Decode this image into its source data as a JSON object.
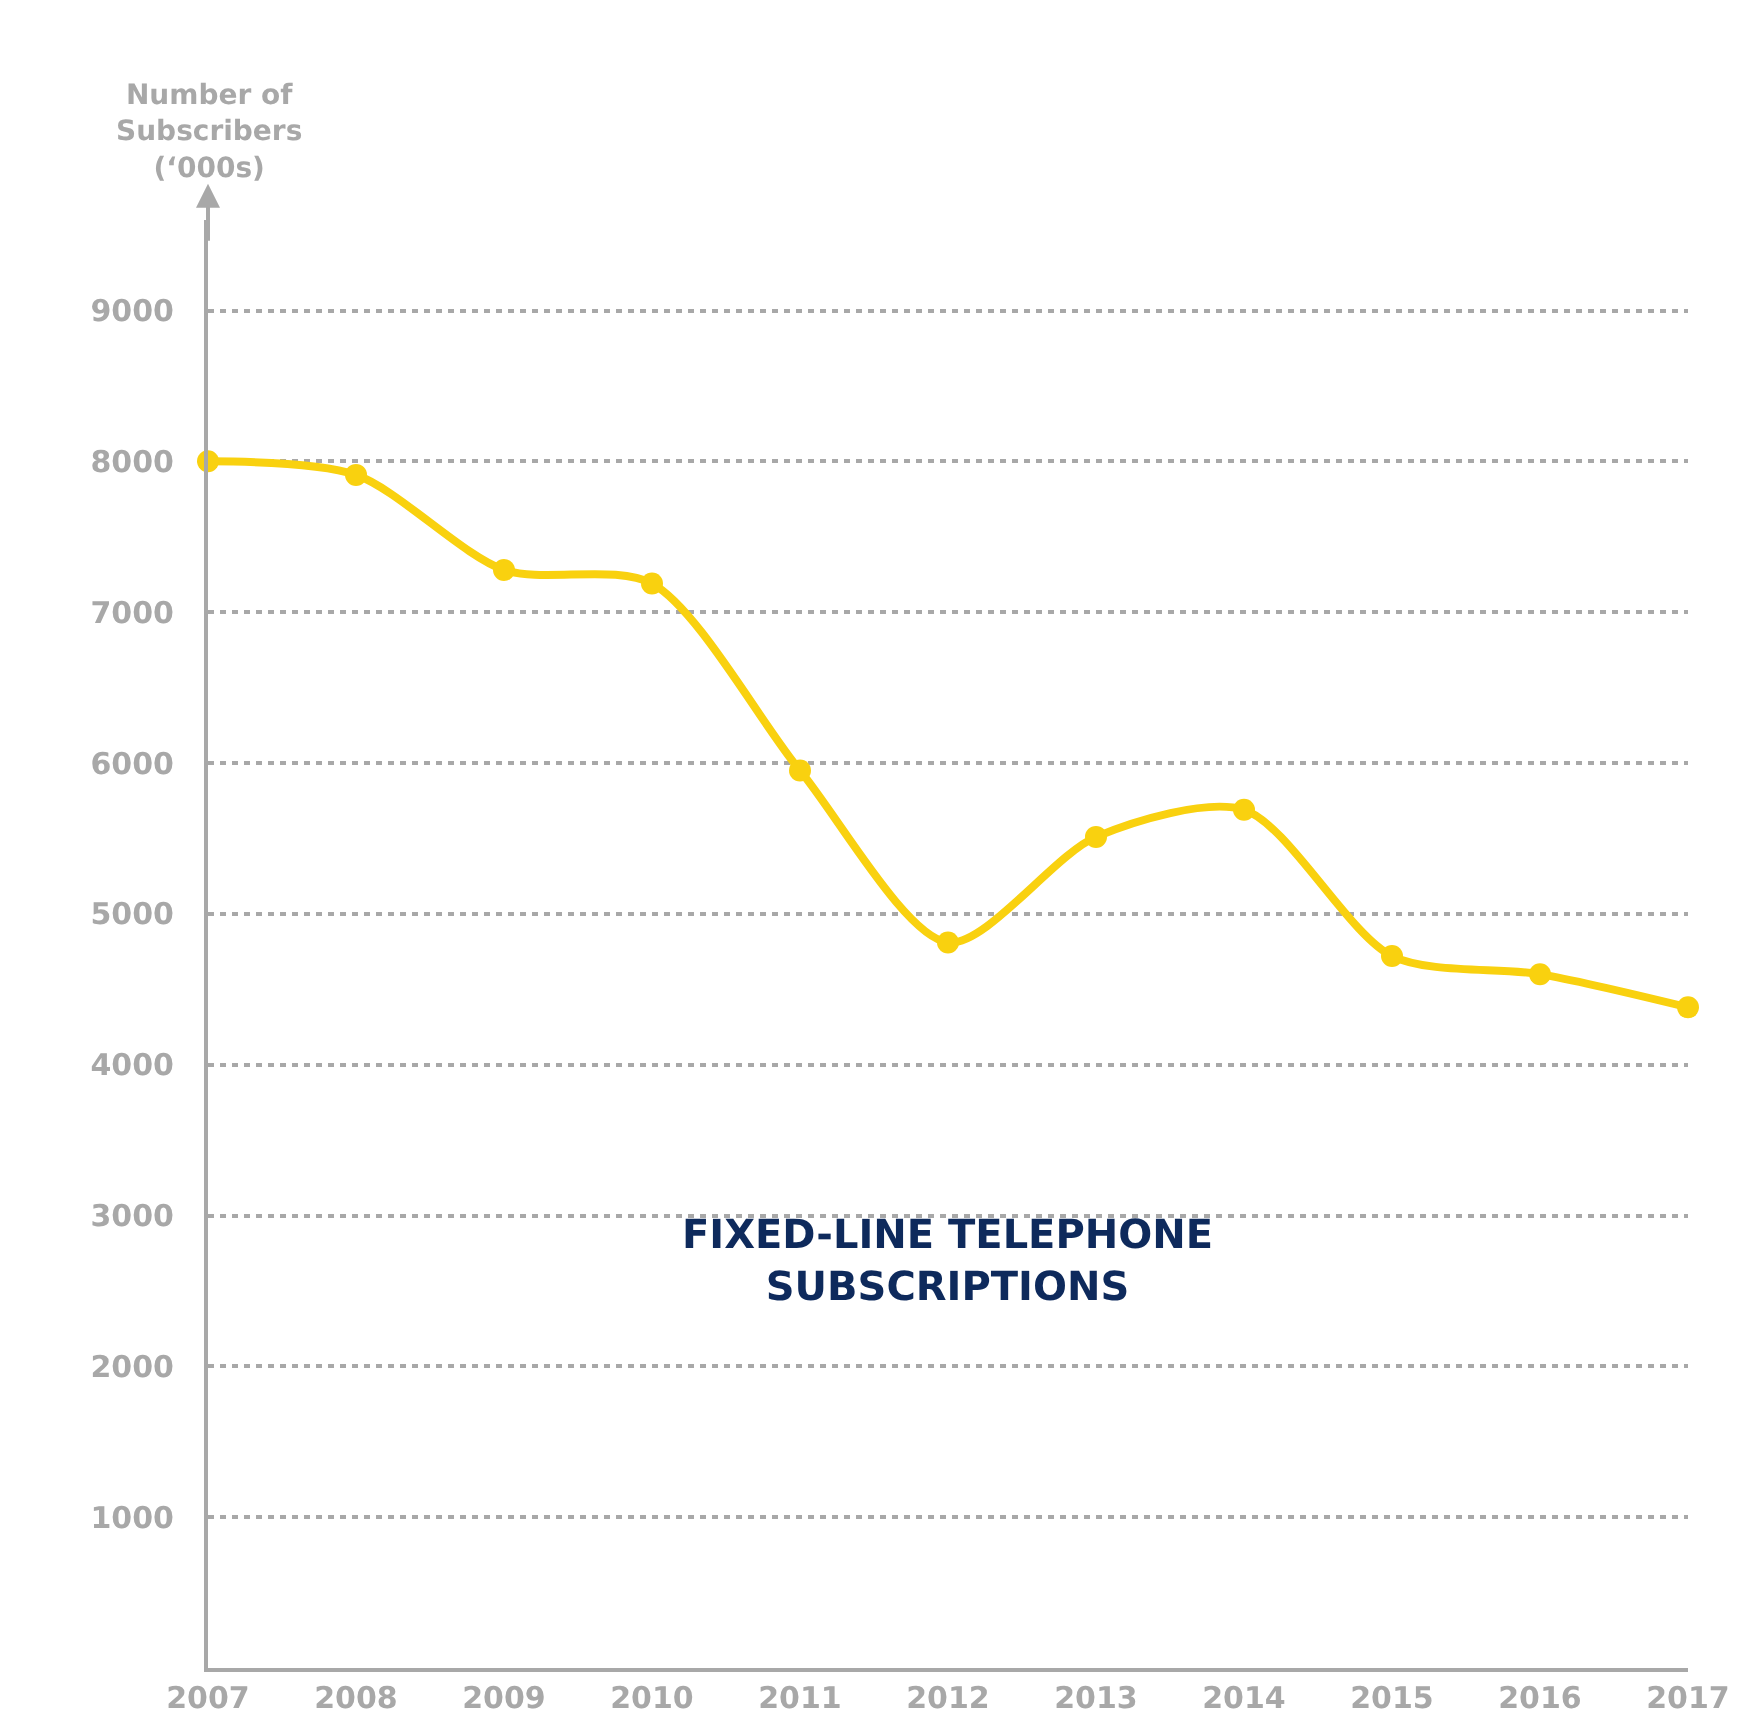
{
  "chart_data": {
    "type": "line",
    "title": "FIXED-LINE TELEPHONE\nSUBSCRIPTIONS",
    "ylabel": "Number of\nSubscribers\n(‘000s)",
    "x": [
      2007,
      2008,
      2009,
      2010,
      2011,
      2012,
      2013,
      2014,
      2015,
      2016,
      2017
    ],
    "series": [
      {
        "color": "#f9d10f",
        "values": [
          8000,
          7910,
          7280,
          7190,
          5950,
          4810,
          5510,
          5690,
          4720,
          4600,
          4380
        ]
      }
    ],
    "xlim": [
      2007,
      2017
    ],
    "xticks": [
      2007,
      2008,
      2009,
      2010,
      2011,
      2012,
      2013,
      2014,
      2015,
      2016,
      2017
    ],
    "ylim": [
      0,
      9600
    ],
    "yticks": [
      1000,
      2000,
      3000,
      4000,
      5000,
      6000,
      7000,
      8000,
      9000
    ],
    "grid": "y",
    "marker": "circle",
    "line_style": "solid"
  }
}
